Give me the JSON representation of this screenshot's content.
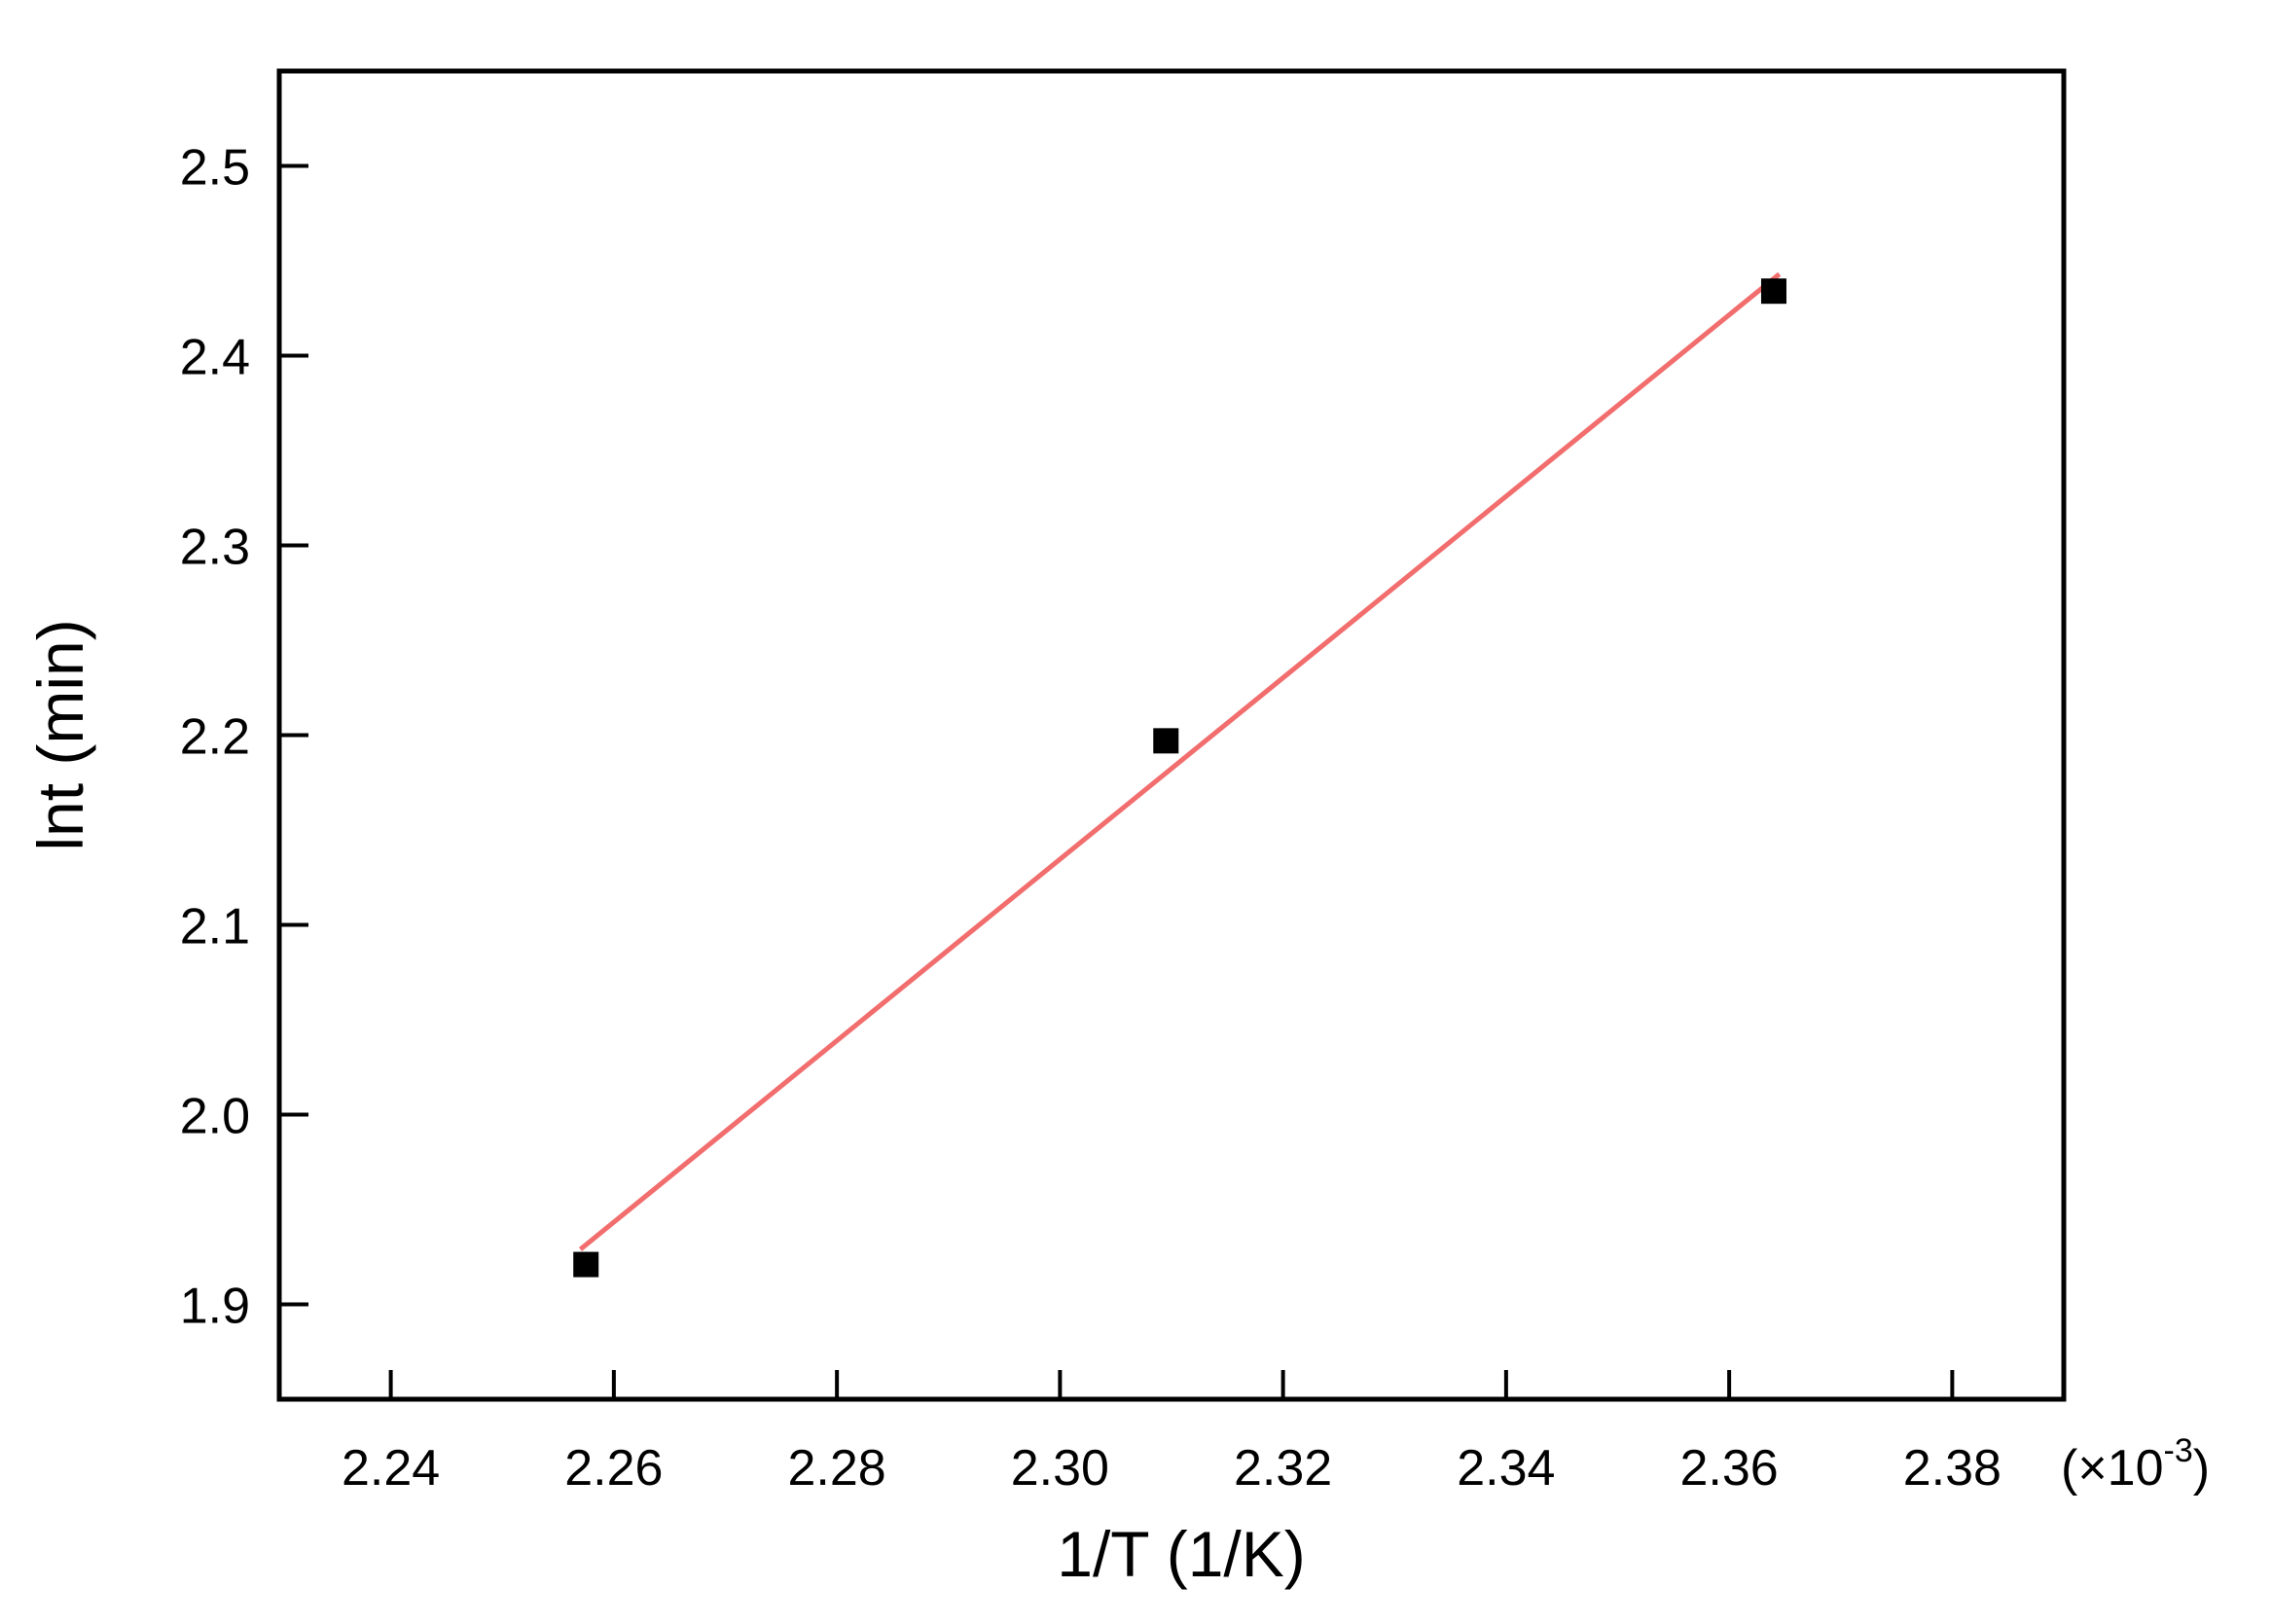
{
  "chart_data": {
    "type": "scatter",
    "title": "",
    "xlabel": "1/T (1/K)",
    "ylabel": "lnt (min)",
    "x_scale_label": {
      "prefix": "(×10",
      "exponent": "-3",
      "suffix": ")"
    },
    "xlim": [
      2.23,
      2.39
    ],
    "ylim": [
      1.85,
      2.55
    ],
    "x_ticks": [
      2.24,
      2.26,
      2.28,
      2.3,
      2.32,
      2.34,
      2.36,
      2.38
    ],
    "x_tick_labels": [
      "2.24",
      "2.26",
      "2.28",
      "2.30",
      "2.32",
      "2.34",
      "2.36",
      "2.38"
    ],
    "y_ticks": [
      1.9,
      2.0,
      2.1,
      2.2,
      2.3,
      2.4,
      2.5
    ],
    "y_tick_labels": [
      "1.9",
      "2.0",
      "2.1",
      "2.2",
      "2.3",
      "2.4",
      "2.5"
    ],
    "grid": false,
    "series": [
      {
        "kind": "scatter",
        "marker": "square",
        "color": "#000000",
        "x": [
          2.2575,
          2.3095,
          2.364
        ],
        "y": [
          1.921,
          2.197,
          2.434
        ]
      },
      {
        "kind": "fit-line",
        "color": "#f26d6d",
        "x": [
          2.257,
          2.3645
        ],
        "y": [
          1.929,
          2.443
        ]
      }
    ]
  }
}
